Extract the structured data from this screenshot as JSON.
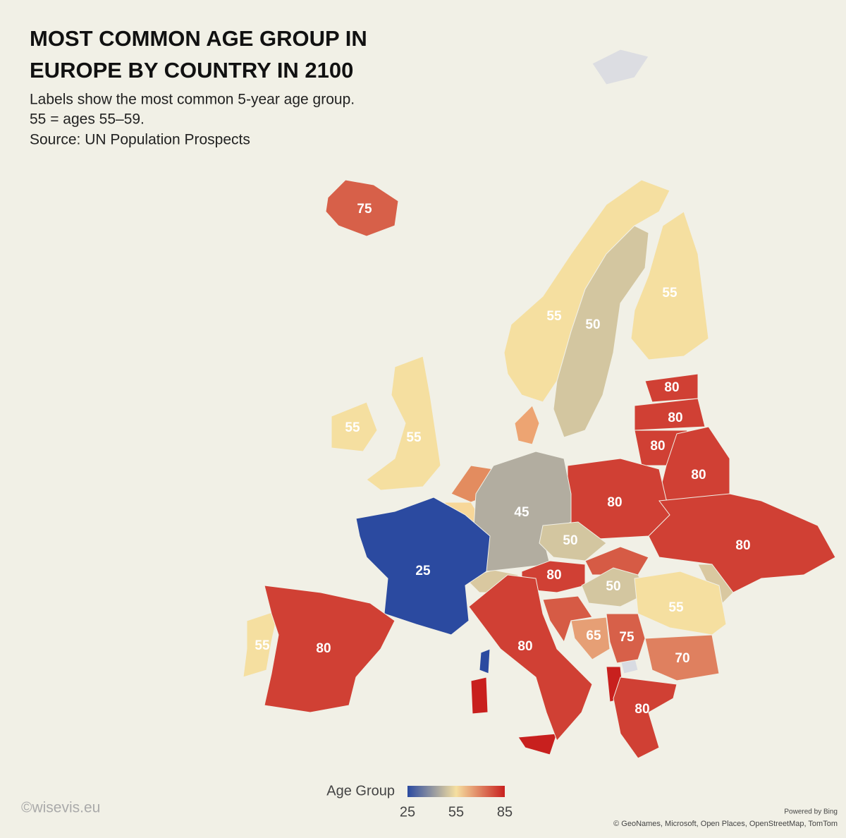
{
  "header": {
    "title_lines": [
      "MOST COMMON AGE GROUP IN",
      "EUROPE BY COUNTRY IN 2100"
    ],
    "subtitle_lines": [
      "Labels show the most common 5-year age group.",
      "55 = ages 55–59.",
      "Source: UN Population Prospects"
    ]
  },
  "legend": {
    "title": "Age Group",
    "domain": [
      25,
      85
    ],
    "ticks": [
      25,
      55,
      85
    ],
    "colors": [
      "#2b4aa0",
      "#f5dfa0",
      "#c8201e"
    ]
  },
  "regions": [
    75,
    55,
    50,
    55,
    55,
    55,
    80,
    80,
    80,
    80,
    80,
    45,
    50,
    80,
    25,
    80,
    50,
    55,
    55,
    80,
    80,
    65,
    75,
    70,
    80
  ],
  "footer": {
    "credit": "©wisevis.eu",
    "powered": "Powered by Bing",
    "attribution": "© GeoNames, Microsoft, Open Places, OpenStreetMap, TomTom"
  }
}
